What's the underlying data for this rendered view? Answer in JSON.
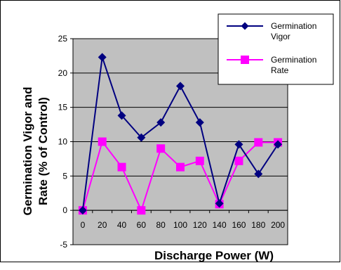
{
  "chart_data": {
    "type": "line",
    "title": "",
    "xlabel": "Discharge Power (W)",
    "ylabel_line1": "Germination Vigor and",
    "ylabel_line2": "Rate  (% of Control)",
    "x": [
      "0",
      "20",
      "40",
      "60",
      "80",
      "100",
      "120",
      "140",
      "160",
      "180",
      "200"
    ],
    "yticks": [
      "25",
      "20",
      "15",
      "10",
      "5",
      "0",
      "-5"
    ],
    "ylim": [
      -5,
      25
    ],
    "grid": true,
    "legend_placement": "top-right",
    "series": [
      {
        "name_line1": "Germination",
        "name_line2": "Vigor",
        "color": "#000080",
        "marker": "diamond",
        "values": [
          0,
          22.3,
          13.8,
          10.6,
          12.8,
          18.1,
          12.8,
          1.0,
          9.6,
          5.3,
          9.6
        ]
      },
      {
        "name_line1": "Germination",
        "name_line2": "Rate",
        "color": "#ff00ff",
        "marker": "square",
        "values": [
          0,
          10.0,
          6.3,
          0,
          9.0,
          6.3,
          7.2,
          0.9,
          7.2,
          9.9,
          9.9
        ]
      }
    ],
    "colors": {
      "plot_background": "#c0c0c0",
      "grid": "#000000"
    }
  }
}
